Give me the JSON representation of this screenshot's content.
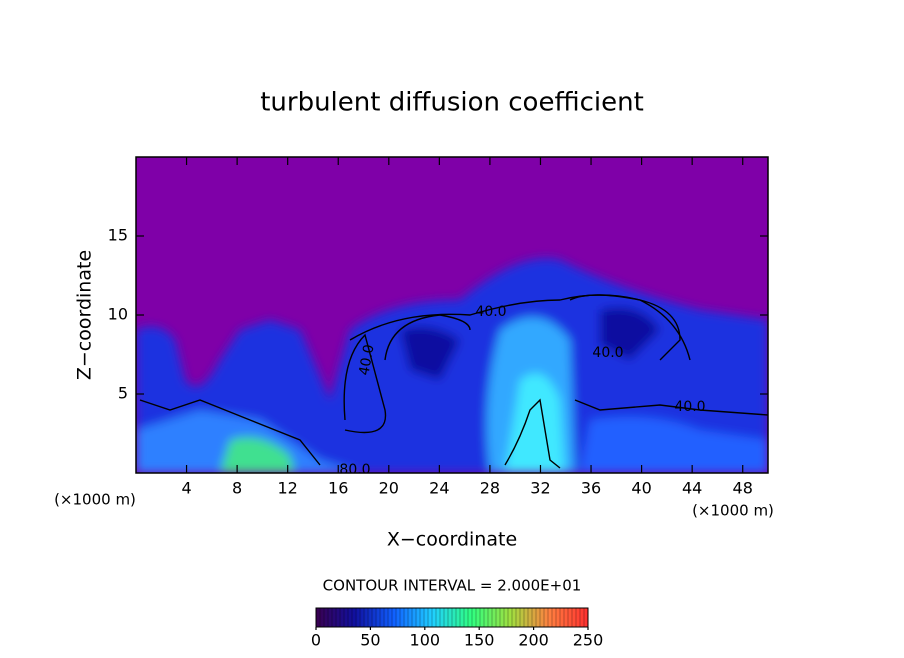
{
  "chart_data": {
    "type": "contour",
    "title": "turbulent diffusion coefficient",
    "x_label": "X−coordinate",
    "y_label": "Z−coordinate",
    "x_unit": "(×1000 m)",
    "y_unit": "(×1000 m)",
    "xlim": [
      0,
      50
    ],
    "ylim": [
      0,
      20
    ],
    "xticks": [
      4,
      8,
      12,
      16,
      20,
      24,
      28,
      32,
      36,
      40,
      44,
      48
    ],
    "yticks": [
      5,
      10,
      15
    ],
    "background_color": "#7f00a8",
    "contour_interval_text": "CONTOUR INTERVAL = 2.000E+01",
    "contour_labels": [
      "40.0",
      "40.0",
      "40.0",
      "40.0",
      "80.0"
    ],
    "colorbar": {
      "range": [
        0,
        250
      ],
      "ticks": [
        0,
        50,
        100,
        150,
        200,
        250
      ],
      "colors": [
        "#3a0050",
        "#1010a0",
        "#1060ff",
        "#20d0ff",
        "#30ff80",
        "#a0e040",
        "#ff8040",
        "#ff3030"
      ]
    }
  }
}
